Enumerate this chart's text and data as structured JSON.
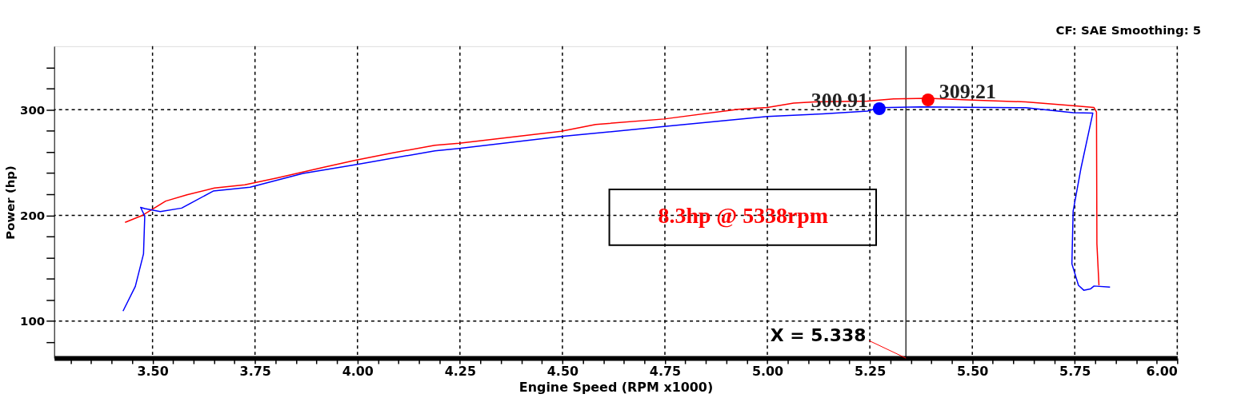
{
  "chart_data": {
    "type": "line",
    "xlabel": "Engine Speed (RPM x1000)",
    "ylabel": "Power (hp)",
    "xlim": [
      3.26,
      6.0
    ],
    "ylim": [
      65,
      360
    ],
    "xticks": [
      {
        "value": 3.3,
        "label": null
      },
      {
        "value": 3.35,
        "label": null
      },
      {
        "value": 3.4,
        "label": null
      },
      {
        "value": 3.45,
        "label": null
      },
      {
        "value": 3.5,
        "label": "3.50"
      },
      {
        "value": 3.55,
        "label": null
      },
      {
        "value": 3.6,
        "label": null
      },
      {
        "value": 3.65,
        "label": null
      },
      {
        "value": 3.7,
        "label": null
      },
      {
        "value": 3.75,
        "label": "3.75"
      },
      {
        "value": 3.8,
        "label": null
      },
      {
        "value": 3.85,
        "label": null
      },
      {
        "value": 3.9,
        "label": null
      },
      {
        "value": 3.95,
        "label": null
      },
      {
        "value": 4.0,
        "label": "4.00"
      },
      {
        "value": 4.05,
        "label": null
      },
      {
        "value": 4.1,
        "label": null
      },
      {
        "value": 4.15,
        "label": null
      },
      {
        "value": 4.2,
        "label": null
      },
      {
        "value": 4.25,
        "label": "4.25"
      },
      {
        "value": 4.3,
        "label": null
      },
      {
        "value": 4.35,
        "label": null
      },
      {
        "value": 4.4,
        "label": null
      },
      {
        "value": 4.45,
        "label": null
      },
      {
        "value": 4.5,
        "label": "4.50"
      },
      {
        "value": 4.55,
        "label": null
      },
      {
        "value": 4.6,
        "label": null
      },
      {
        "value": 4.65,
        "label": null
      },
      {
        "value": 4.7,
        "label": null
      },
      {
        "value": 4.75,
        "label": "4.75"
      },
      {
        "value": 4.8,
        "label": null
      },
      {
        "value": 4.85,
        "label": null
      },
      {
        "value": 4.9,
        "label": null
      },
      {
        "value": 4.95,
        "label": null
      },
      {
        "value": 5.0,
        "label": "5.00"
      },
      {
        "value": 5.05,
        "label": null
      },
      {
        "value": 5.1,
        "label": null
      },
      {
        "value": 5.15,
        "label": null
      },
      {
        "value": 5.2,
        "label": null
      },
      {
        "value": 5.25,
        "label": "5.25"
      },
      {
        "value": 5.3,
        "label": null
      },
      {
        "value": 5.35,
        "label": null
      },
      {
        "value": 5.4,
        "label": null
      },
      {
        "value": 5.45,
        "label": null
      },
      {
        "value": 5.5,
        "label": "5.50"
      },
      {
        "value": 5.55,
        "label": null
      },
      {
        "value": 5.6,
        "label": null
      },
      {
        "value": 5.65,
        "label": null
      },
      {
        "value": 5.7,
        "label": null
      },
      {
        "value": 5.75,
        "label": "5.75"
      },
      {
        "value": 5.8,
        "label": null
      },
      {
        "value": 5.85,
        "label": null
      },
      {
        "value": 5.9,
        "label": null
      },
      {
        "value": 5.95,
        "label": null
      },
      {
        "value": 6.0,
        "label": "6.00"
      }
    ],
    "yticks": [
      {
        "value": 80,
        "label": null
      },
      100,
      {
        "value": 120,
        "label": null
      },
      {
        "value": 140,
        "label": null
      },
      {
        "value": 160,
        "label": null
      },
      {
        "value": 180,
        "label": null
      },
      200,
      {
        "value": 220,
        "label": null
      },
      {
        "value": 240,
        "label": null
      },
      {
        "value": 260,
        "label": null
      },
      {
        "value": 280,
        "label": null
      },
      300,
      {
        "value": 320,
        "label": null
      },
      {
        "value": 340,
        "label": null
      }
    ],
    "grid": true,
    "legend": false,
    "series": [
      {
        "color": "#ff0000",
        "x": [
          3.433,
          3.474,
          3.532,
          3.584,
          3.651,
          3.725,
          3.803,
          3.918,
          3.995,
          4.086,
          4.189,
          4.248,
          4.497,
          4.581,
          4.748,
          4.929,
          5.0,
          5.064,
          5.115,
          5.244,
          5.308,
          5.392,
          5.501,
          5.63,
          5.746,
          5.797,
          5.803,
          5.804,
          5.809
        ],
        "values": [
          193.4,
          199.8,
          213.5,
          219.5,
          225.9,
          229,
          235.4,
          245.6,
          252.2,
          259.2,
          266.3,
          268.2,
          279.6,
          286,
          291.2,
          300.3,
          302,
          306.2,
          307.4,
          308.1,
          310.2,
          310.7,
          309,
          307.4,
          303.8,
          302,
          297.9,
          173.1,
          133.9
        ]
      },
      {
        "color": "#0000ff",
        "x": [
          3.428,
          3.458,
          3.478,
          3.481,
          3.471,
          3.481,
          3.519,
          3.571,
          3.648,
          3.738,
          3.867,
          3.996,
          4.189,
          4.248,
          4.497,
          4.748,
          5.0,
          5.135,
          5.244,
          5.273,
          5.373,
          5.63,
          5.746,
          5.794,
          5.765,
          5.746,
          5.743,
          5.759,
          5.772,
          5.788,
          5.797,
          5.836
        ],
        "values": [
          109.5,
          132.8,
          163.6,
          199.3,
          207.6,
          206.4,
          203.6,
          206.9,
          223,
          226.6,
          239.7,
          248,
          261.1,
          263.4,
          274.6,
          284.1,
          293.6,
          296,
          298.6,
          301.9,
          302.6,
          301.9,
          297.2,
          296.7,
          244.4,
          204,
          154.2,
          133.9,
          129.2,
          130.4,
          133.2,
          132.1
        ]
      },
      {
        "type": "scatter",
        "color": "#ff0000",
        "x": [
          5.392
        ],
        "values": [
          309.21
        ],
        "value_labels": [
          "309.21"
        ]
      },
      {
        "type": "scatter",
        "color": "#0000ff",
        "x": [
          5.273
        ],
        "values": [
          300.91
        ],
        "value_labels": [
          "300.91"
        ]
      }
    ],
    "ref_lines": [
      {
        "axis": "x",
        "value": 5.338,
        "label": "X = 5.338",
        "color": "#000000"
      }
    ],
    "annotations": [
      "8.3hp @ 5338rpm",
      "CF: SAE  Smoothing: 5"
    ]
  }
}
